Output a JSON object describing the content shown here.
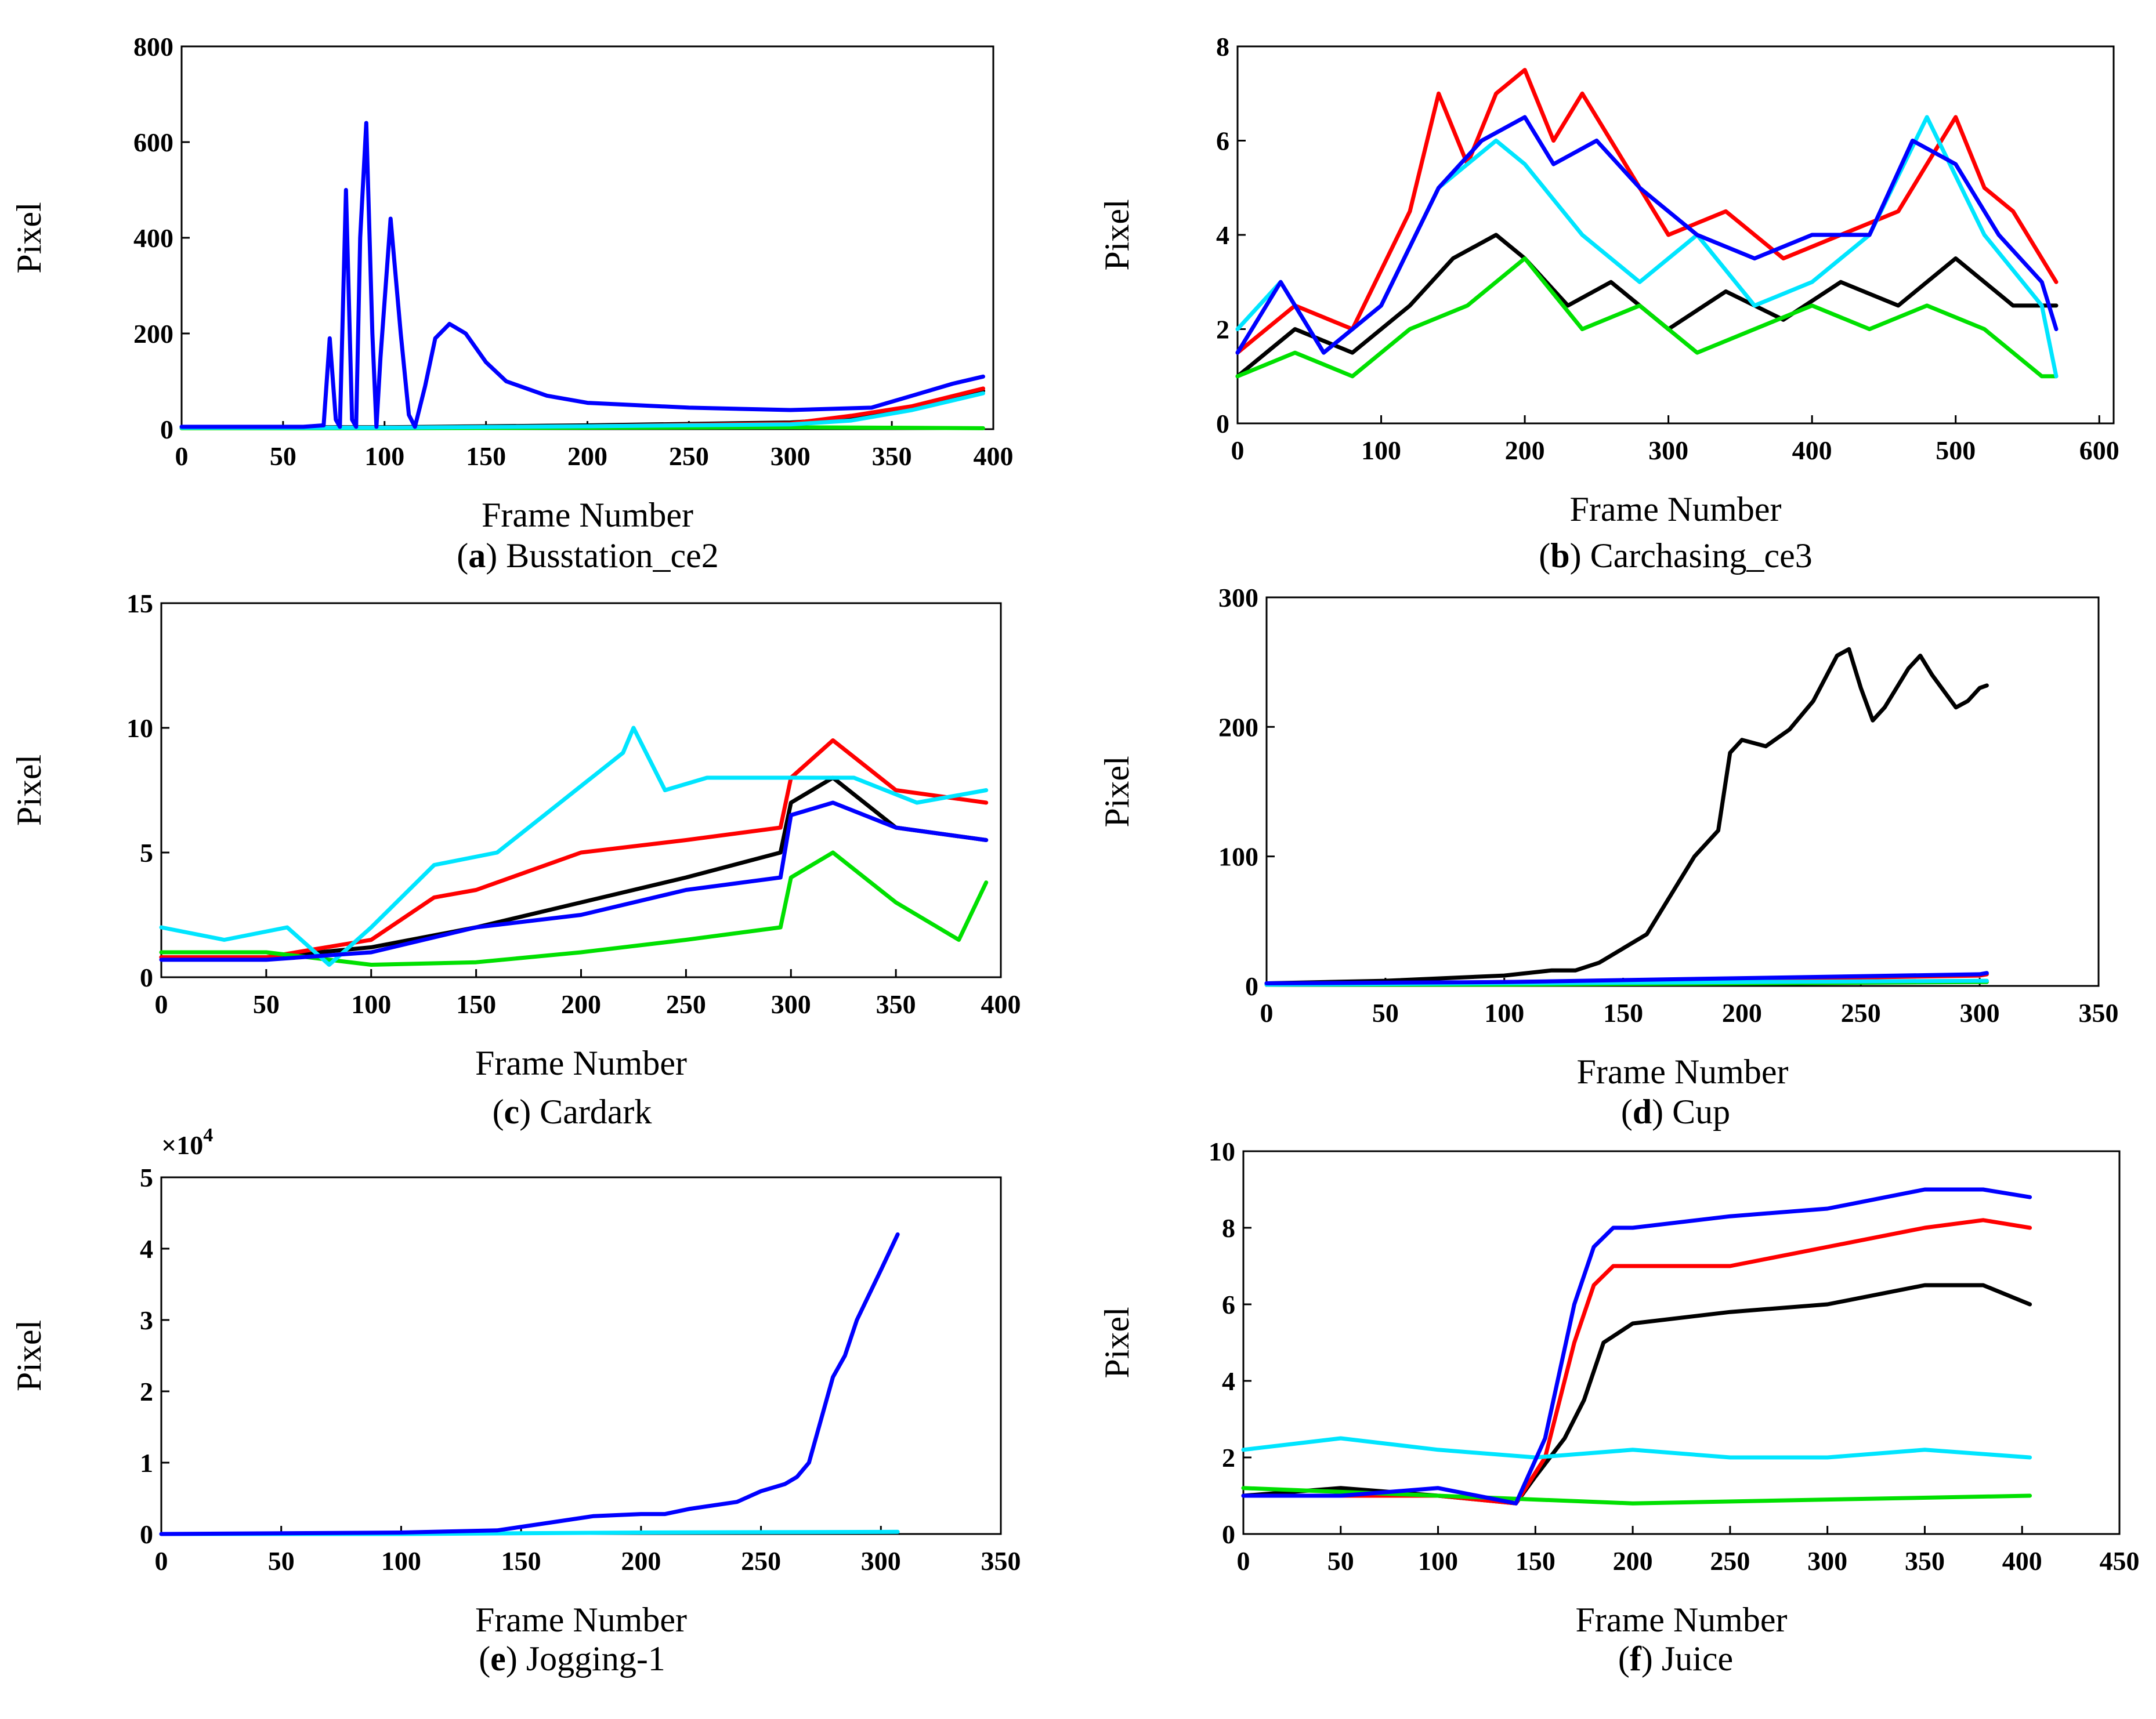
{
  "figure": {
    "colors": {
      "black": "#000000",
      "red": "#ff0000",
      "green": "#00e000",
      "blue": "#0000ff",
      "cyan": "#00e5ff"
    }
  },
  "chart_data": [
    {
      "id": "a",
      "type": "line",
      "caption_letter": "a",
      "caption_text": "Busstation_ce2",
      "xlabel": "Frame Number",
      "ylabel": "Pixel",
      "xlim": [
        0,
        400
      ],
      "ylim": [
        0,
        800
      ],
      "xticks": [
        0,
        50,
        100,
        150,
        200,
        250,
        300,
        350,
        400
      ],
      "yticks": [
        0,
        200,
        400,
        600,
        800
      ],
      "series": [
        {
          "name": "black",
          "color": "#000000",
          "x": [
            0,
            100,
            200,
            300,
            330,
            360,
            395
          ],
          "y": [
            4,
            4,
            8,
            14,
            22,
            45,
            80
          ]
        },
        {
          "name": "red",
          "color": "#ff0000",
          "x": [
            0,
            100,
            200,
            300,
            330,
            360,
            395
          ],
          "y": [
            3,
            3,
            6,
            12,
            28,
            48,
            85
          ]
        },
        {
          "name": "green",
          "color": "#00e000",
          "x": [
            0,
            100,
            200,
            300,
            350,
            395
          ],
          "y": [
            2,
            2,
            3,
            4,
            3,
            2
          ]
        },
        {
          "name": "cyan",
          "color": "#00e5ff",
          "x": [
            0,
            100,
            200,
            300,
            330,
            360,
            395
          ],
          "y": [
            3,
            3,
            6,
            10,
            18,
            40,
            75
          ]
        },
        {
          "name": "blue",
          "color": "#0000ff",
          "x": [
            0,
            60,
            70,
            73,
            76,
            78,
            81,
            84,
            86,
            88,
            91,
            94,
            96,
            98,
            103,
            108,
            112,
            115,
            120,
            125,
            132,
            140,
            150,
            160,
            180,
            200,
            250,
            300,
            340,
            360,
            380,
            395
          ],
          "y": [
            5,
            5,
            8,
            190,
            20,
            5,
            500,
            20,
            5,
            400,
            640,
            200,
            5,
            150,
            440,
            200,
            30,
            5,
            90,
            190,
            220,
            200,
            140,
            100,
            70,
            55,
            45,
            40,
            45,
            70,
            95,
            110
          ]
        }
      ]
    },
    {
      "id": "b",
      "type": "line",
      "caption_letter": "b",
      "caption_text": "Carchasing_ce3",
      "xlabel": "Frame Number",
      "ylabel": "Pixel",
      "xlim": [
        0,
        610
      ],
      "ylim": [
        0,
        8
      ],
      "xticks": [
        0,
        100,
        200,
        300,
        400,
        500,
        600
      ],
      "yticks": [
        0,
        2,
        4,
        6,
        8
      ],
      "series": [
        {
          "name": "black",
          "color": "#000000",
          "x": [
            0,
            40,
            80,
            120,
            150,
            180,
            200,
            230,
            260,
            300,
            340,
            380,
            420,
            460,
            500,
            540,
            570
          ],
          "y": [
            1,
            2,
            1.5,
            2.5,
            3.5,
            4,
            3.5,
            2.5,
            3,
            2,
            2.8,
            2.2,
            3,
            2.5,
            3.5,
            2.5,
            2.5
          ]
        },
        {
          "name": "red",
          "color": "#ff0000",
          "x": [
            0,
            40,
            80,
            120,
            140,
            160,
            180,
            200,
            220,
            240,
            260,
            300,
            340,
            380,
            420,
            460,
            480,
            500,
            520,
            540,
            570
          ],
          "y": [
            1.5,
            2.5,
            2,
            4.5,
            7,
            5.5,
            7,
            7.5,
            6,
            7,
            6,
            4,
            4.5,
            3.5,
            4,
            4.5,
            5.5,
            6.5,
            5,
            4.5,
            3
          ]
        },
        {
          "name": "green",
          "color": "#00e000",
          "x": [
            0,
            40,
            80,
            120,
            160,
            200,
            240,
            280,
            320,
            360,
            400,
            440,
            480,
            520,
            560,
            570
          ],
          "y": [
            1,
            1.5,
            1,
            2,
            2.5,
            3.5,
            2,
            2.5,
            1.5,
            2,
            2.5,
            2,
            2.5,
            2,
            1,
            1
          ]
        },
        {
          "name": "cyan",
          "color": "#00e5ff",
          "x": [
            0,
            30,
            60,
            100,
            140,
            180,
            200,
            240,
            280,
            320,
            360,
            400,
            440,
            480,
            520,
            560,
            570
          ],
          "y": [
            2,
            3,
            1.5,
            2.5,
            5,
            6,
            5.5,
            4,
            3,
            4,
            2.5,
            3,
            4,
            6.5,
            4,
            2.5,
            1
          ]
        },
        {
          "name": "blue",
          "color": "#0000ff",
          "x": [
            0,
            30,
            60,
            100,
            140,
            170,
            200,
            220,
            250,
            280,
            320,
            360,
            400,
            440,
            470,
            500,
            530,
            560,
            570
          ],
          "y": [
            1.5,
            3,
            1.5,
            2.5,
            5,
            6,
            6.5,
            5.5,
            6,
            5,
            4,
            3.5,
            4,
            4,
            6,
            5.5,
            4,
            3,
            2
          ]
        }
      ]
    },
    {
      "id": "c",
      "type": "line",
      "caption_letter": "c",
      "caption_text": "Cardark",
      "xlabel": "Frame Number",
      "ylabel": "Pixel",
      "xlim": [
        0,
        400
      ],
      "ylim": [
        0,
        15
      ],
      "xticks": [
        0,
        50,
        100,
        150,
        200,
        250,
        300,
        350,
        400
      ],
      "yticks": [
        0,
        5,
        10,
        15
      ],
      "series": [
        {
          "name": "black",
          "color": "#000000",
          "x": [
            0,
            50,
            100,
            150,
            200,
            250,
            295,
            300,
            320,
            350,
            393
          ],
          "y": [
            0.8,
            0.8,
            1.2,
            2,
            3,
            4,
            5,
            7,
            8,
            6,
            5.5
          ]
        },
        {
          "name": "red",
          "color": "#ff0000",
          "x": [
            0,
            50,
            100,
            130,
            150,
            200,
            250,
            295,
            300,
            320,
            350,
            393
          ],
          "y": [
            0.8,
            0.8,
            1.5,
            3.2,
            3.5,
            5,
            5.5,
            6,
            8,
            9.5,
            7.5,
            7
          ]
        },
        {
          "name": "green",
          "color": "#00e000",
          "x": [
            0,
            50,
            100,
            150,
            200,
            250,
            295,
            300,
            320,
            350,
            380,
            393
          ],
          "y": [
            1,
            1,
            0.5,
            0.6,
            1,
            1.5,
            2,
            4,
            5,
            3,
            1.5,
            3.8
          ]
        },
        {
          "name": "cyan",
          "color": "#00e5ff",
          "x": [
            0,
            30,
            60,
            80,
            100,
            130,
            160,
            190,
            220,
            225,
            240,
            260,
            300,
            330,
            360,
            393
          ],
          "y": [
            2,
            1.5,
            2,
            0.5,
            2,
            4.5,
            5,
            7,
            9,
            10,
            7.5,
            8,
            8,
            8,
            7,
            7.5
          ]
        },
        {
          "name": "blue",
          "color": "#0000ff",
          "x": [
            0,
            50,
            100,
            150,
            200,
            250,
            295,
            300,
            320,
            350,
            393
          ],
          "y": [
            0.7,
            0.7,
            1,
            2,
            2.5,
            3.5,
            4,
            6.5,
            7,
            6,
            5.5
          ]
        }
      ]
    },
    {
      "id": "d",
      "type": "line",
      "caption_letter": "d",
      "caption_text": "Cup",
      "xlabel": "Frame Number",
      "ylabel": "Pixel",
      "xlim": [
        0,
        350
      ],
      "ylim": [
        0,
        300
      ],
      "xticks": [
        0,
        50,
        100,
        150,
        200,
        250,
        300,
        350
      ],
      "yticks": [
        0,
        100,
        200,
        300
      ],
      "series": [
        {
          "name": "black",
          "color": "#000000",
          "x": [
            0,
            50,
            100,
            120,
            130,
            140,
            160,
            170,
            180,
            190,
            195,
            200,
            210,
            220,
            230,
            240,
            245,
            250,
            255,
            260,
            270,
            275,
            280,
            290,
            295,
            300,
            303
          ],
          "y": [
            2,
            4,
            8,
            12,
            12,
            18,
            40,
            70,
            100,
            120,
            180,
            190,
            185,
            198,
            220,
            255,
            260,
            230,
            205,
            215,
            245,
            255,
            240,
            215,
            220,
            230,
            232
          ]
        },
        {
          "name": "red",
          "color": "#ff0000",
          "x": [
            0,
            100,
            200,
            300,
            303
          ],
          "y": [
            1,
            3,
            5,
            8,
            9
          ]
        },
        {
          "name": "green",
          "color": "#00e000",
          "x": [
            0,
            100,
            200,
            300,
            303
          ],
          "y": [
            1,
            1,
            2,
            3,
            3
          ]
        },
        {
          "name": "cyan",
          "color": "#00e5ff",
          "x": [
            0,
            100,
            200,
            300,
            303
          ],
          "y": [
            1,
            2,
            3,
            4,
            4
          ]
        },
        {
          "name": "blue",
          "color": "#0000ff",
          "x": [
            0,
            100,
            200,
            300,
            303
          ],
          "y": [
            2,
            3,
            6,
            9,
            10
          ]
        }
      ]
    },
    {
      "id": "e",
      "type": "line",
      "caption_letter": "e",
      "caption_text": "Jogging-1",
      "xlabel": "Frame Number",
      "ylabel": "Pixel",
      "exponent_label": "×10",
      "exponent_power": "4",
      "xlim": [
        0,
        350
      ],
      "ylim": [
        0,
        5
      ],
      "xticks": [
        0,
        50,
        100,
        150,
        200,
        250,
        300,
        350
      ],
      "yticks": [
        0,
        1,
        2,
        3,
        4,
        5
      ],
      "series": [
        {
          "name": "cyan",
          "color": "#00e5ff",
          "x": [
            0,
            100,
            200,
            307
          ],
          "y": [
            0,
            0,
            0.02,
            0.03
          ]
        },
        {
          "name": "blue",
          "color": "#0000ff",
          "x": [
            0,
            100,
            140,
            160,
            180,
            200,
            210,
            220,
            240,
            250,
            260,
            265,
            270,
            280,
            285,
            290,
            300,
            307
          ],
          "y": [
            0,
            0.02,
            0.05,
            0.15,
            0.25,
            0.28,
            0.28,
            0.35,
            0.45,
            0.6,
            0.7,
            0.8,
            1,
            2.2,
            2.5,
            3,
            3.7,
            4.2
          ]
        }
      ]
    },
    {
      "id": "f",
      "type": "line",
      "caption_letter": "f",
      "caption_text": "Juice",
      "xlabel": "Frame Number",
      "ylabel": "Pixel",
      "xlim": [
        0,
        450
      ],
      "ylim": [
        0,
        10
      ],
      "xticks": [
        0,
        50,
        100,
        150,
        200,
        250,
        300,
        350,
        400,
        450
      ],
      "yticks": [
        0,
        2,
        4,
        6,
        8,
        10
      ],
      "series": [
        {
          "name": "black",
          "color": "#000000",
          "x": [
            0,
            50,
            100,
            140,
            150,
            165,
            175,
            185,
            200,
            250,
            300,
            350,
            380,
            404
          ],
          "y": [
            1,
            1.2,
            1,
            0.8,
            1.5,
            2.5,
            3.5,
            5,
            5.5,
            5.8,
            6,
            6.5,
            6.5,
            6
          ]
        },
        {
          "name": "red",
          "color": "#ff0000",
          "x": [
            0,
            50,
            100,
            140,
            155,
            170,
            180,
            190,
            200,
            250,
            300,
            350,
            380,
            404
          ],
          "y": [
            1,
            1,
            1,
            0.8,
            2,
            5,
            6.5,
            7,
            7,
            7,
            7.5,
            8,
            8.2,
            8
          ]
        },
        {
          "name": "green",
          "color": "#00e000",
          "x": [
            0,
            100,
            200,
            300,
            404
          ],
          "y": [
            1.2,
            1,
            0.8,
            0.9,
            1
          ]
        },
        {
          "name": "cyan",
          "color": "#00e5ff",
          "x": [
            0,
            50,
            100,
            150,
            200,
            250,
            300,
            350,
            404
          ],
          "y": [
            2.2,
            2.5,
            2.2,
            2,
            2.2,
            2,
            2,
            2.2,
            2
          ]
        },
        {
          "name": "blue",
          "color": "#0000ff",
          "x": [
            0,
            50,
            100,
            140,
            155,
            170,
            180,
            190,
            200,
            250,
            300,
            350,
            380,
            404
          ],
          "y": [
            1,
            1,
            1.2,
            0.8,
            2.5,
            6,
            7.5,
            8,
            8,
            8.3,
            8.5,
            9,
            9,
            8.8
          ]
        }
      ]
    }
  ]
}
